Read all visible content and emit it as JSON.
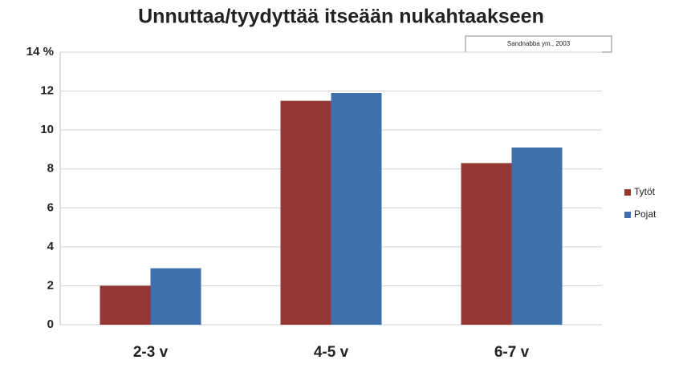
{
  "chart_data": {
    "type": "bar",
    "title": "Unnuttaa/tyydyttää itseään nukahtaakseen",
    "annotation": "Sandnabba ym., 2003",
    "categories": [
      "2-3 v",
      "4-5 v",
      "6-7 v"
    ],
    "series": [
      {
        "name": "Tytöt",
        "color": "#953735",
        "values": [
          2.0,
          11.5,
          8.3
        ]
      },
      {
        "name": "Pojat",
        "color": "#3f6fad",
        "values": [
          2.9,
          11.9,
          9.1
        ]
      }
    ],
    "ylim": [
      0,
      14
    ],
    "yticks": [
      0,
      2,
      4,
      6,
      8,
      10,
      12,
      {
        "value": 14,
        "label": "14 %"
      }
    ],
    "grid": true,
    "legend": "right"
  }
}
